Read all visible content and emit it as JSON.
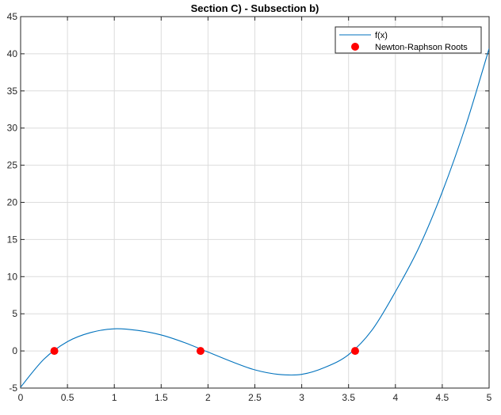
{
  "chart_data": {
    "type": "line",
    "title": "Section C) - Subsection b)",
    "xlabel": "",
    "ylabel": "",
    "xlim": [
      0,
      5
    ],
    "ylim": [
      -5,
      45
    ],
    "grid": true,
    "x_ticks": [
      "0",
      "0.5",
      "1",
      "1.5",
      "2",
      "2.5",
      "3",
      "3.5",
      "4",
      "4.5",
      "5"
    ],
    "y_ticks": [
      "-5",
      "0",
      "5",
      "10",
      "15",
      "20",
      "25",
      "30",
      "35",
      "40",
      "45"
    ],
    "legend_position": "top-right",
    "series": [
      {
        "name": "f(x)",
        "kind": "line",
        "color": "#0072BD",
        "x": [
          0,
          0.25,
          0.5,
          0.75,
          1.0,
          1.25,
          1.5,
          1.75,
          2.0,
          2.25,
          2.5,
          2.75,
          3.0,
          3.25,
          3.5,
          3.75,
          4.0,
          4.25,
          4.5,
          4.75,
          5.0
        ],
        "y": [
          -4.88,
          -1.1,
          1.25,
          2.48,
          2.98,
          2.76,
          2.15,
          1.12,
          -0.15,
          -1.43,
          -2.55,
          -3.15,
          -3.15,
          -2.2,
          -0.5,
          2.8,
          7.97,
          13.9,
          21.4,
          30.3,
          40.7
        ]
      },
      {
        "name": "Newton-Raphson Roots",
        "kind": "scatter",
        "color": "#FF0000",
        "x": [
          0.36,
          1.92,
          3.57
        ],
        "y": [
          0,
          0,
          0
        ]
      }
    ]
  }
}
